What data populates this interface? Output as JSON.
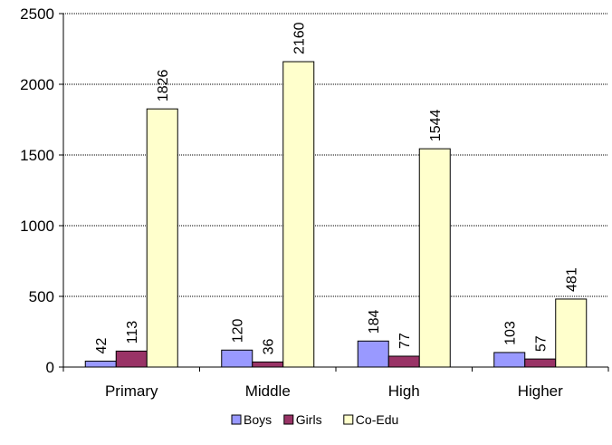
{
  "chart_data": {
    "type": "bar",
    "categories": [
      "Primary",
      "Middle",
      "High",
      "Higher"
    ],
    "series": [
      {
        "name": "Boys",
        "values": [
          42,
          120,
          184,
          103
        ],
        "color": "#9999ff"
      },
      {
        "name": "Girls",
        "values": [
          113,
          36,
          77,
          57
        ],
        "color": "#993366"
      },
      {
        "name": "Co-Edu",
        "values": [
          1826,
          2160,
          1544,
          481
        ],
        "color": "#ffffcc"
      }
    ],
    "ylim": [
      0,
      2500
    ],
    "yticks": [
      0,
      500,
      1000,
      1500,
      2000,
      2500
    ],
    "grid": true,
    "legend": "bottom",
    "data_labels": true,
    "title": "",
    "xlabel": "",
    "ylabel": ""
  }
}
